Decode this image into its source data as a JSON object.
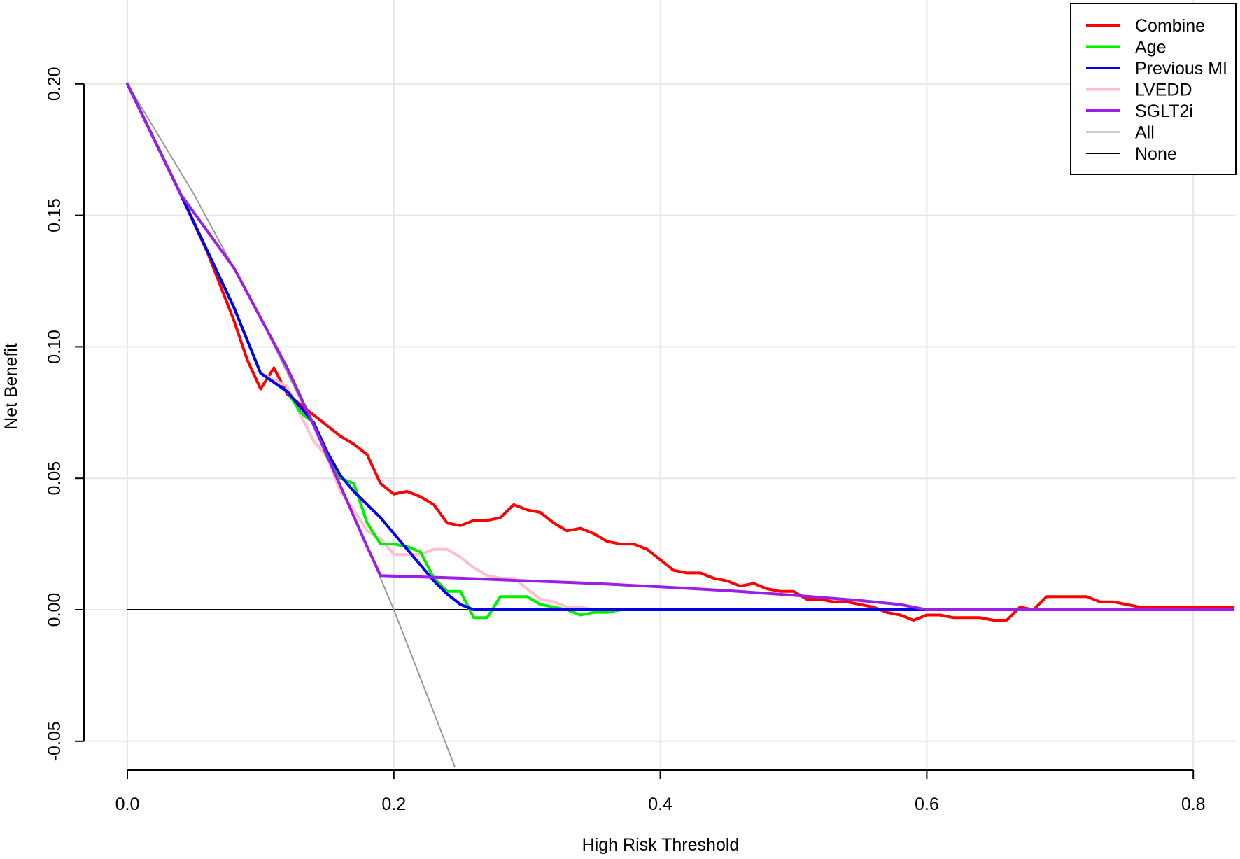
{
  "chart_data": {
    "type": "line",
    "xlabel": "High Risk Threshold",
    "ylabel": "Net Benefit",
    "xlim": [
      0,
      0.83
    ],
    "ylim": [
      -0.05,
      0.2
    ],
    "grid": true,
    "legend_position": "top-right",
    "x_ticks": [
      {
        "value": 0.0,
        "label": "0.0"
      },
      {
        "value": 0.2,
        "label": "0.2"
      },
      {
        "value": 0.4,
        "label": "0.4"
      },
      {
        "value": 0.6,
        "label": "0.6"
      },
      {
        "value": 0.8,
        "label": "0.8"
      }
    ],
    "y_ticks": [
      {
        "value": -0.05,
        "label": "-0.05"
      },
      {
        "value": 0.0,
        "label": "0.00"
      },
      {
        "value": 0.05,
        "label": "0.05"
      },
      {
        "value": 0.1,
        "label": "0.10"
      },
      {
        "value": 0.15,
        "label": "0.15"
      },
      {
        "value": 0.2,
        "label": "0.20"
      }
    ],
    "series": [
      {
        "name": "Combine",
        "color": "#ff0000",
        "width": 4,
        "x": [
          0.0,
          0.02,
          0.04,
          0.05,
          0.06,
          0.07,
          0.08,
          0.09,
          0.1,
          0.11,
          0.12,
          0.13,
          0.14,
          0.15,
          0.16,
          0.17,
          0.18,
          0.19,
          0.2,
          0.21,
          0.22,
          0.23,
          0.24,
          0.25,
          0.26,
          0.27,
          0.28,
          0.29,
          0.3,
          0.31,
          0.32,
          0.33,
          0.34,
          0.35,
          0.36,
          0.37,
          0.38,
          0.39,
          0.4,
          0.41,
          0.42,
          0.43,
          0.44,
          0.45,
          0.46,
          0.47,
          0.48,
          0.49,
          0.5,
          0.51,
          0.52,
          0.53,
          0.54,
          0.55,
          0.56,
          0.57,
          0.58,
          0.59,
          0.6,
          0.61,
          0.62,
          0.63,
          0.64,
          0.65,
          0.66,
          0.67,
          0.68,
          0.69,
          0.7,
          0.71,
          0.72,
          0.73,
          0.74,
          0.75,
          0.76,
          0.77,
          0.78,
          0.79,
          0.8,
          0.81,
          0.82,
          0.83
        ],
        "y": [
          0.2,
          0.179,
          0.158,
          0.147,
          0.136,
          0.123,
          0.11,
          0.095,
          0.084,
          0.092,
          0.082,
          0.078,
          0.074,
          0.07,
          0.066,
          0.063,
          0.059,
          0.048,
          0.044,
          0.045,
          0.043,
          0.04,
          0.033,
          0.032,
          0.034,
          0.034,
          0.035,
          0.04,
          0.038,
          0.037,
          0.033,
          0.03,
          0.031,
          0.029,
          0.026,
          0.025,
          0.025,
          0.023,
          0.019,
          0.015,
          0.014,
          0.014,
          0.012,
          0.011,
          0.009,
          0.01,
          0.008,
          0.007,
          0.007,
          0.004,
          0.004,
          0.003,
          0.003,
          0.002,
          0.001,
          -0.001,
          -0.002,
          -0.004,
          -0.002,
          -0.002,
          -0.003,
          -0.003,
          -0.003,
          -0.004,
          -0.004,
          0.001,
          0.0,
          0.005,
          0.005,
          0.005,
          0.005,
          0.003,
          0.003,
          0.002,
          0.001,
          0.001,
          0.001,
          0.001,
          0.001,
          0.001,
          0.001,
          0.001
        ]
      },
      {
        "name": "Age",
        "color": "#00ee00",
        "width": 4,
        "x": [
          0.0,
          0.04,
          0.08,
          0.1,
          0.12,
          0.13,
          0.14,
          0.15,
          0.16,
          0.17,
          0.18,
          0.19,
          0.2,
          0.21,
          0.22,
          0.23,
          0.24,
          0.25,
          0.26,
          0.27,
          0.28,
          0.29,
          0.3,
          0.31,
          0.32,
          0.33,
          0.34,
          0.35,
          0.36,
          0.37,
          0.38,
          0.83
        ],
        "y": [
          0.2,
          0.158,
          0.115,
          0.09,
          0.083,
          0.075,
          0.071,
          0.058,
          0.05,
          0.048,
          0.033,
          0.025,
          0.025,
          0.024,
          0.022,
          0.012,
          0.007,
          0.007,
          -0.003,
          -0.003,
          0.005,
          0.005,
          0.005,
          0.002,
          0.001,
          0.0,
          -0.002,
          -0.001,
          -0.001,
          0.0,
          0.0,
          0.0
        ]
      },
      {
        "name": "Previous MI",
        "color": "#0000ee",
        "width": 4,
        "x": [
          0.0,
          0.04,
          0.08,
          0.1,
          0.12,
          0.13,
          0.14,
          0.15,
          0.16,
          0.17,
          0.18,
          0.19,
          0.2,
          0.21,
          0.22,
          0.23,
          0.24,
          0.25,
          0.26,
          0.3,
          0.35,
          0.83
        ],
        "y": [
          0.2,
          0.158,
          0.115,
          0.09,
          0.083,
          0.077,
          0.071,
          0.06,
          0.051,
          0.045,
          0.04,
          0.035,
          0.029,
          0.023,
          0.017,
          0.011,
          0.006,
          0.002,
          0.0,
          0.0,
          0.0,
          0.0
        ]
      },
      {
        "name": "LVEDD",
        "color": "#ffc0cb",
        "width": 4,
        "x": [
          0.0,
          0.04,
          0.08,
          0.1,
          0.12,
          0.13,
          0.14,
          0.15,
          0.16,
          0.17,
          0.18,
          0.19,
          0.2,
          0.21,
          0.22,
          0.23,
          0.24,
          0.25,
          0.26,
          0.27,
          0.28,
          0.29,
          0.3,
          0.31,
          0.32,
          0.33,
          0.34,
          0.35,
          0.36,
          0.37,
          0.83
        ],
        "y": [
          0.2,
          0.158,
          0.115,
          0.09,
          0.085,
          0.074,
          0.064,
          0.058,
          0.045,
          0.038,
          0.03,
          0.027,
          0.021,
          0.021,
          0.021,
          0.023,
          0.023,
          0.02,
          0.016,
          0.013,
          0.012,
          0.012,
          0.008,
          0.004,
          0.003,
          0.001,
          0.001,
          0.0,
          0.0,
          0.0,
          0.0
        ]
      },
      {
        "name": "SGLT2i",
        "color": "#9a1ee6",
        "width": 4,
        "x": [
          0.0,
          0.04,
          0.08,
          0.1,
          0.12,
          0.14,
          0.16,
          0.18,
          0.19,
          0.25,
          0.3,
          0.35,
          0.4,
          0.45,
          0.5,
          0.55,
          0.58,
          0.6,
          0.65,
          0.7,
          0.83
        ],
        "y": [
          0.2,
          0.158,
          0.13,
          0.111,
          0.092,
          0.07,
          0.047,
          0.024,
          0.013,
          0.012,
          0.011,
          0.01,
          0.0087,
          0.0073,
          0.0055,
          0.0035,
          0.002,
          0.0,
          0.0,
          0.0,
          0.0
        ]
      },
      {
        "name": "All",
        "color": "#999999",
        "width": 2,
        "x": [
          0.0,
          0.05,
          0.1,
          0.15,
          0.19,
          0.2,
          0.22,
          0.246
        ],
        "y": [
          0.2,
          0.158,
          0.111,
          0.059,
          0.012,
          0.0,
          -0.026,
          -0.06
        ]
      },
      {
        "name": "None",
        "color": "#000000",
        "width": 2,
        "x": [
          0.0,
          0.83
        ],
        "y": [
          0.0,
          0.0
        ]
      }
    ]
  }
}
